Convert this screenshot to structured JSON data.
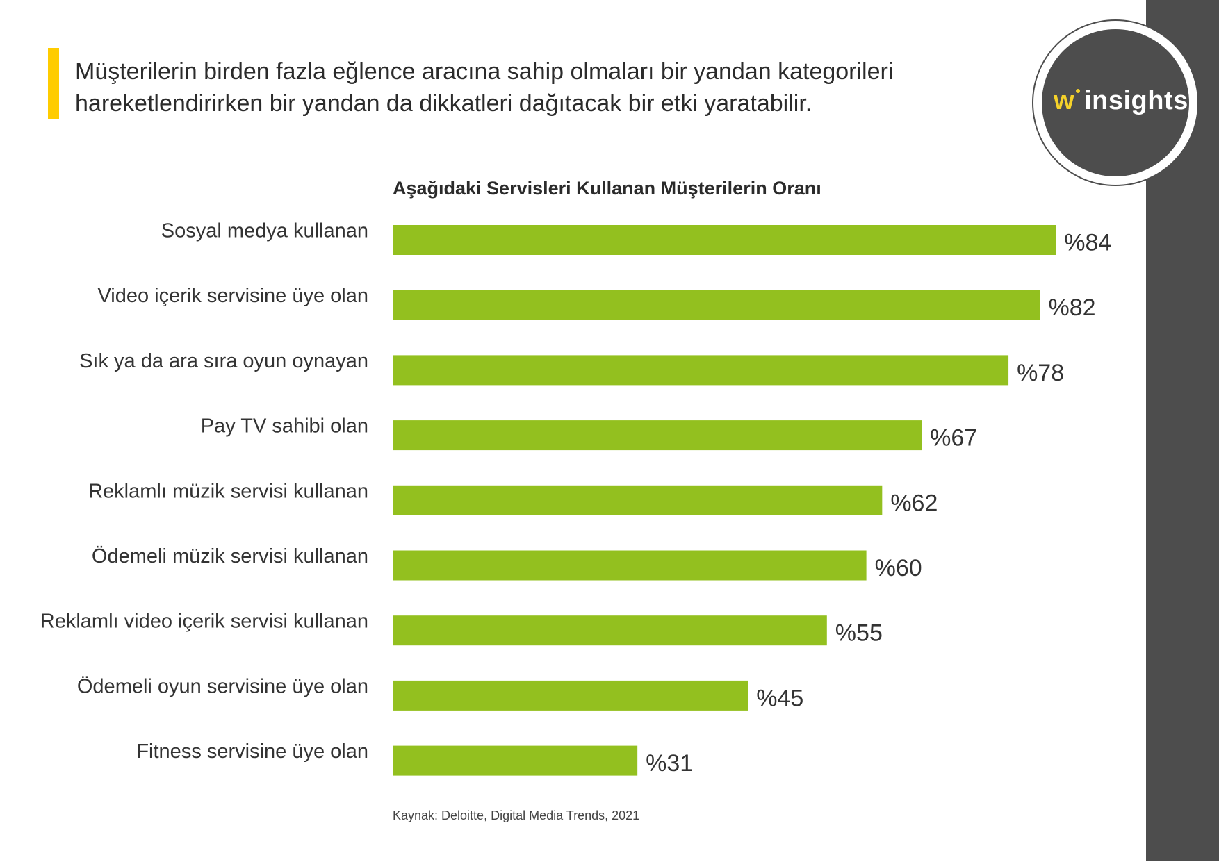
{
  "headline": "Müşterilerin birden fazla eğlence aracına sahip olmaları bir yandan kategorileri hareketlendirirken bir yandan da dikkatleri dağıtacak bir etki yaratabilir.",
  "logo": {
    "prefix": "w",
    "text": "insights"
  },
  "colors": {
    "bar": "#93c01f",
    "accent": "#ffcc00",
    "dark": "#4d4d4d"
  },
  "chart_data": {
    "type": "bar",
    "orientation": "horizontal",
    "title": "Aşağıdaki Servisleri Kullanan Müşterilerin Oranı",
    "categories": [
      "Sosyal medya kullanan",
      "Video içerik servisine üye olan",
      "Sık ya da ara sıra oyun oynayan",
      "Pay TV sahibi olan",
      "Reklamlı müzik servisi kullanan",
      "Ödemeli müzik servisi kullanan",
      "Reklamlı video içerik servisi kullanan",
      "Ödemeli oyun servisine üye olan",
      "Fitness servisine üye olan"
    ],
    "values": [
      84,
      82,
      78,
      67,
      62,
      60,
      55,
      45,
      31
    ],
    "value_labels": [
      "%84",
      "%82",
      "%78",
      "%67",
      "%62",
      "%60",
      "%55",
      "%45",
      "%31"
    ],
    "unit": "%",
    "grid": false
  },
  "source": "Kaynak: Deloitte, Digital Media Trends, 2021"
}
